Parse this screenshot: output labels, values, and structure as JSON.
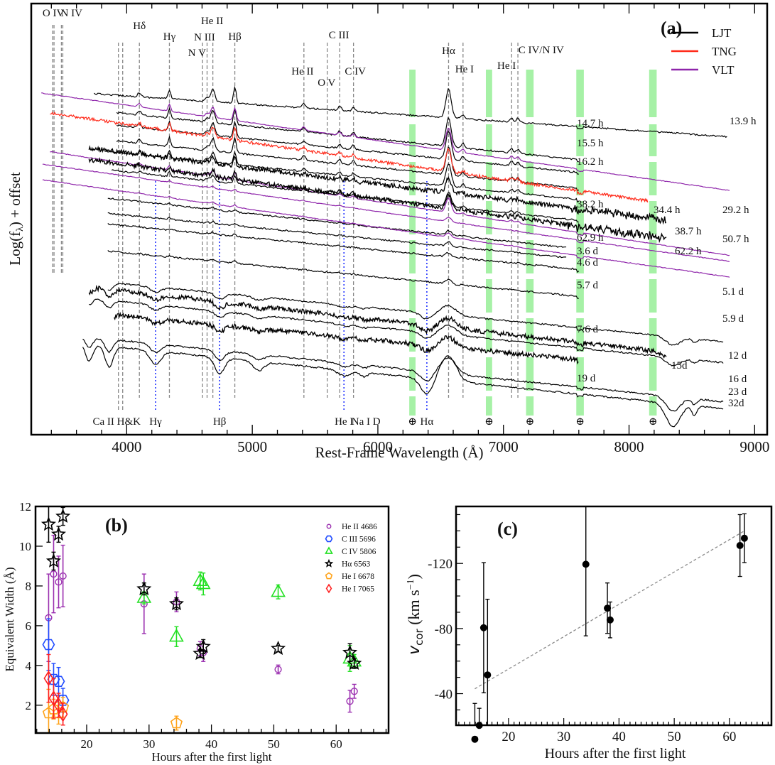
{
  "chart_data": [
    {
      "id": "a",
      "type": "line",
      "panel_label": "(a)",
      "title": "",
      "xlabel": "Rest-Frame Wavelength (Å)",
      "ylabel": "Log(fλ) + offset",
      "xlim": [
        3240,
        9100
      ],
      "xticks": [
        4000,
        5000,
        6000,
        7000,
        8000,
        9000
      ],
      "x_minor_step": 200,
      "legend": {
        "position": "top-right",
        "entries": [
          {
            "name": "LJT",
            "color": "#000000"
          },
          {
            "name": "TNG",
            "color": "#ff2a1a"
          },
          {
            "name": "VLT",
            "color": "#8e24aa"
          }
        ]
      },
      "spectra": [
        {
          "epoch": "13.9 h",
          "instrument": "LJT",
          "wmin": 3740,
          "wmax": 8780,
          "color": "#000000",
          "label_color": "#111111",
          "features": "emission"
        },
        {
          "epoch": "14.7 h",
          "instrument": "LJT",
          "wmin": 3920,
          "wmax": 7600,
          "color": "#000000",
          "label_color": "#111111",
          "features": "emission"
        },
        {
          "epoch": "15.5 h",
          "instrument": "LJT",
          "wmin": 3920,
          "wmax": 7600,
          "color": "#000000",
          "label_color": "#111111",
          "features": "emission"
        },
        {
          "epoch": "16.2 h",
          "instrument": "LJT",
          "wmin": 3920,
          "wmax": 7600,
          "color": "#000000",
          "label_color": "#111111",
          "features": "emission"
        },
        {
          "epoch": "29.2 h",
          "instrument": "VLT",
          "wmin": 3320,
          "wmax": 8800,
          "color": "#8e24aa",
          "label_color": "#8e24aa",
          "features": "emission"
        },
        {
          "epoch": "34.4 h",
          "instrument": "TNG",
          "wmin": 3390,
          "wmax": 8150,
          "color": "#ff2a1a",
          "label_color": "#ff2a1a",
          "features": "emission"
        },
        {
          "epoch": "38.2 h",
          "instrument": "LJT",
          "wmin": 3820,
          "wmax": 7600,
          "color": "#000000",
          "label_color": "#111111",
          "features": "emission"
        },
        {
          "epoch": "38.7 h",
          "instrument": "LJT",
          "wmin": 3700,
          "wmax": 8300,
          "color": "#000000",
          "label_color": "#111111",
          "features": "emission-noisy"
        },
        {
          "epoch": "50.7 h",
          "instrument": "VLT",
          "wmin": 3390,
          "wmax": 8800,
          "color": "#8e24aa",
          "label_color": "#8e24aa",
          "features": "emission-weak"
        },
        {
          "epoch": "62.2 h",
          "instrument": "LJT",
          "wmin": 3700,
          "wmax": 8300,
          "color": "#000000",
          "label_color": "#111111",
          "features": "emission-noisy"
        },
        {
          "epoch": "62.9 h",
          "instrument": "LJT",
          "wmin": 3880,
          "wmax": 7600,
          "color": "#000000",
          "label_color": "#111111",
          "features": "emission-weak"
        },
        {
          "epoch": "3.6 d",
          "instrument": "LJT",
          "wmin": 3850,
          "wmax": 7500,
          "color": "#000000",
          "label_color": "#111111",
          "features": "weak"
        },
        {
          "epoch": "4.6 d",
          "instrument": "LJT",
          "wmin": 3850,
          "wmax": 7500,
          "color": "#000000",
          "label_color": "#111111",
          "features": "weak"
        },
        {
          "epoch": "5.1 d",
          "instrument": "VLT",
          "wmin": 3330,
          "wmax": 8800,
          "color": "#8e24aa",
          "label_color": "#8e24aa",
          "features": "weak"
        },
        {
          "epoch": "5.7 d",
          "instrument": "LJT",
          "wmin": 3850,
          "wmax": 7600,
          "color": "#000000",
          "label_color": "#111111",
          "features": "weak"
        },
        {
          "epoch": "5.9 d",
          "instrument": "VLT",
          "wmin": 3330,
          "wmax": 8800,
          "color": "#8e24aa",
          "label_color": "#8e24aa",
          "features": "weak"
        },
        {
          "epoch": "7.6 d",
          "instrument": "LJT",
          "wmin": 3850,
          "wmax": 7600,
          "color": "#000000",
          "label_color": "#111111",
          "features": "weak"
        },
        {
          "epoch": "12 d",
          "instrument": "LJT",
          "wmin": 3850,
          "wmax": 8750,
          "color": "#000000",
          "label_color": "#111111",
          "features": "pcygni"
        },
        {
          "epoch": "15d",
          "instrument": "LJT",
          "wmin": 3700,
          "wmax": 8300,
          "color": "#000000",
          "label_color": "#111111",
          "features": "pcygni-noisy"
        },
        {
          "epoch": "16 d",
          "instrument": "LJT",
          "wmin": 3700,
          "wmax": 8750,
          "color": "#000000",
          "label_color": "#111111",
          "features": "pcygni"
        },
        {
          "epoch": "19 d",
          "instrument": "LJT",
          "wmin": 3900,
          "wmax": 7600,
          "color": "#000000",
          "label_color": "#111111",
          "features": "pcygni-noisy"
        },
        {
          "epoch": "23 d",
          "instrument": "LJT",
          "wmin": 3650,
          "wmax": 8750,
          "color": "#000000",
          "label_color": "#111111",
          "features": "pcygni-strong"
        },
        {
          "epoch": "32d",
          "instrument": "LJT",
          "wmin": 3650,
          "wmax": 8750,
          "color": "#000000",
          "label_color": "#111111",
          "features": "pcygni-strong"
        }
      ],
      "emission_lines": [
        {
          "label": "O IV",
          "wavelength": 3410
        },
        {
          "label": "N IV",
          "wavelength": 3480
        },
        {
          "label": "Hδ",
          "wavelength": 4101
        },
        {
          "label": "Hγ",
          "wavelength": 4340
        },
        {
          "label": "N V",
          "wavelength": 4604
        },
        {
          "label": "N III",
          "wavelength": 4640
        },
        {
          "label": "He II",
          "wavelength": 4686
        },
        {
          "label": "Hβ",
          "wavelength": 4861
        },
        {
          "label": "He II",
          "wavelength": 5411
        },
        {
          "label": "O V",
          "wavelength": 5597
        },
        {
          "label": "C III",
          "wavelength": 5696
        },
        {
          "label": "C IV",
          "wavelength": 5806
        },
        {
          "label": "Hα",
          "wavelength": 6563
        },
        {
          "label": "He I",
          "wavelength": 6678
        },
        {
          "label": "He I",
          "wavelength": 7065
        },
        {
          "label": "C IV/N IV",
          "wavelength": 7115
        }
      ],
      "absorption_lines": [
        {
          "label": "Ca II H&K",
          "wavelength": 3950,
          "color": "#111111"
        },
        {
          "label": "Hγ",
          "wavelength": 4230,
          "color": "#1f3bff"
        },
        {
          "label": "Hβ",
          "wavelength": 4740,
          "color": "#1f3bff"
        },
        {
          "label": "He I",
          "wavelength": 5730,
          "color": "#1f3bff"
        },
        {
          "label": "Na I D",
          "wavelength": 5892,
          "color": "#111111"
        },
        {
          "label": "Hα",
          "wavelength": 6390,
          "color": "#1f3bff"
        }
      ],
      "telluric_bands": [
        {
          "wmin": 6250,
          "wmax": 6300,
          "symbol": "⊕"
        },
        {
          "wmin": 6860,
          "wmax": 6910,
          "symbol": "⊕"
        },
        {
          "wmin": 7180,
          "wmax": 7240,
          "symbol": "⊕"
        },
        {
          "wmin": 7580,
          "wmax": 7640,
          "symbol": "⊕"
        },
        {
          "wmin": 8160,
          "wmax": 8220,
          "symbol": "⊕"
        }
      ],
      "telluric_color": "#9cf09c"
    },
    {
      "id": "b",
      "type": "scatter",
      "panel_label": "(b)",
      "xlabel": "Hours after the first light",
      "ylabel": "Equivalent Width (Å)",
      "xlim": [
        11.8,
        68.4
      ],
      "ylim": [
        0.6,
        12
      ],
      "xticks": [
        20,
        30,
        40,
        50,
        60
      ],
      "yticks": [
        2,
        4,
        6,
        8,
        10,
        12
      ],
      "legend_position": "top-right",
      "series": [
        {
          "name": "He II 4686",
          "color": "#9b30b0",
          "marker": "circle-small",
          "points": [
            [
              13.9,
              6.4,
              2.2
            ],
            [
              14.7,
              8.6,
              1.95
            ],
            [
              15.5,
              8.2,
              1.3
            ],
            [
              16.2,
              8.5,
              1.55
            ],
            [
              29.2,
              7.1,
              1.5
            ],
            [
              34.4,
              7.2,
              0.5
            ],
            [
              38.2,
              4.85,
              0.35
            ],
            [
              38.7,
              4.65,
              0.45
            ],
            [
              50.7,
              3.8,
              0.22
            ],
            [
              62.2,
              2.2,
              0.55
            ],
            [
              62.9,
              2.7,
              0.35
            ]
          ]
        },
        {
          "name": "C III 5696",
          "color": "#1f4bff",
          "marker": "hexagon",
          "points": [
            [
              13.9,
              5.05,
              1.3
            ],
            [
              14.7,
              3.3,
              0.8
            ],
            [
              15.5,
              3.2,
              0.7
            ],
            [
              16.2,
              2.25,
              0.6
            ]
          ]
        },
        {
          "name": "C IV 5806",
          "color": "#22e022",
          "marker": "triangle",
          "points": [
            [
              29.2,
              7.4,
              0.3
            ],
            [
              34.4,
              5.45,
              0.5
            ],
            [
              38.2,
              8.25,
              0.45
            ],
            [
              38.7,
              8.1,
              0.55
            ],
            [
              50.7,
              7.7,
              0.35
            ],
            [
              62.2,
              4.35,
              0.65
            ],
            [
              62.9,
              4.2,
              0.35
            ]
          ]
        },
        {
          "name": "Hα 6563",
          "color": "#000000",
          "marker": "star",
          "points": [
            [
              13.9,
              11.1,
              0.9
            ],
            [
              14.7,
              9.25,
              0.45
            ],
            [
              15.5,
              10.6,
              0.4
            ],
            [
              16.2,
              11.5,
              0.45
            ],
            [
              29.2,
              7.85,
              0.3
            ],
            [
              34.4,
              7.1,
              0.3
            ],
            [
              38.2,
              4.6,
              0.2
            ],
            [
              38.7,
              4.95,
              0.35
            ],
            [
              50.7,
              4.85,
              0.15
            ],
            [
              62.2,
              4.65,
              0.45
            ],
            [
              62.9,
              4.1,
              0.25
            ]
          ]
        },
        {
          "name": "He I 6678",
          "color": "#ffa31a",
          "marker": "pentagon",
          "points": [
            [
              13.9,
              1.6,
              1.2
            ],
            [
              14.7,
              1.8,
              0.5
            ],
            [
              15.5,
              1.6,
              0.55
            ],
            [
              16.2,
              1.9,
              0.5
            ],
            [
              34.4,
              1.1,
              0.35
            ]
          ]
        },
        {
          "name": "He I 7065",
          "color": "#ff2020",
          "marker": "diamond",
          "points": [
            [
              13.9,
              3.35,
              1.2
            ],
            [
              14.7,
              2.35,
              1.0
            ],
            [
              15.5,
              2.0,
              0.6
            ],
            [
              16.2,
              1.55,
              0.55
            ]
          ]
        }
      ]
    },
    {
      "id": "c",
      "type": "scatter",
      "panel_label": "(c)",
      "xlabel": "Hours after the first light",
      "ylabel": "vcor (km s−1)",
      "ylabel_main": "v",
      "ylabel_sub": "cor",
      "ylabel_rest": " (km s",
      "ylabel_sup": "−1",
      "ylabel_end": ")",
      "xlim": [
        10.5,
        67.6
      ],
      "ylim": [
        -20.6,
        -155
      ],
      "y_inverted": true,
      "xticks": [
        20,
        30,
        40,
        50,
        60
      ],
      "yticks": [
        -40,
        -80,
        -120
      ],
      "color": "#000000",
      "points": [
        {
          "x": 13.9,
          "y": -12,
          "err_lo": 28,
          "err_hi": 22
        },
        {
          "x": 14.7,
          "y": -20.5,
          "err_lo": 10,
          "err_hi": 10.5
        },
        {
          "x": 15.5,
          "y": -80.5,
          "err_lo": 40,
          "err_hi": 40
        },
        {
          "x": 16.2,
          "y": -51.5,
          "err_lo": 46,
          "err_hi": 46.5
        },
        {
          "x": 34.0,
          "y": -119.5,
          "err_lo": 44,
          "err_hi": 36
        },
        {
          "x": 37.9,
          "y": -92.5,
          "err_lo": 15.5,
          "err_hi": 15.5
        },
        {
          "x": 38.4,
          "y": -85.3,
          "err_lo": 11,
          "err_hi": 11
        },
        {
          "x": 61.9,
          "y": -131,
          "err_lo": 19,
          "err_hi": 19
        },
        {
          "x": 62.7,
          "y": -135.5,
          "err_lo": 15,
          "err_hi": 15
        }
      ],
      "fit_line": {
        "x": [
          13.9,
          62.7
        ],
        "y": [
          -43,
          -140
        ],
        "style": "dashed",
        "color": "#8a8a8a"
      }
    }
  ]
}
